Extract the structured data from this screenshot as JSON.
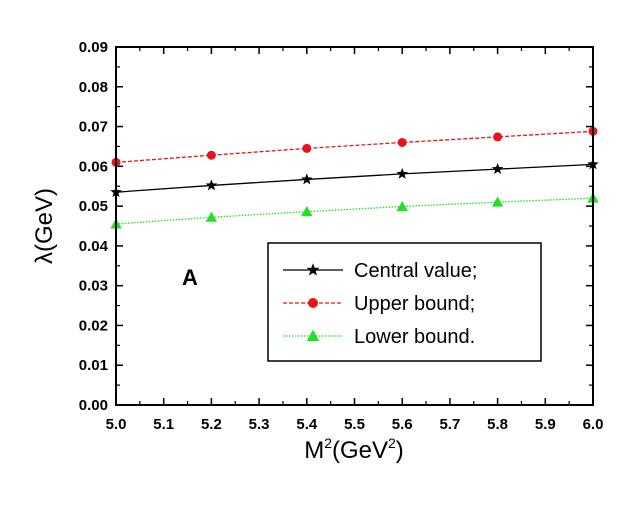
{
  "chart_data": {
    "type": "line",
    "x": [
      5.0,
      5.2,
      5.4,
      5.6,
      5.8,
      6.0
    ],
    "series": [
      {
        "name": "Central value;",
        "values": [
          0.0535,
          0.0552,
          0.0567,
          0.0581,
          0.0593,
          0.0605
        ],
        "color": "#000000",
        "marker": "star",
        "dash": "solid"
      },
      {
        "name": "Upper bound;",
        "values": [
          0.061,
          0.0628,
          0.0645,
          0.066,
          0.0674,
          0.0688
        ],
        "color": "#e8141b",
        "marker": "circle",
        "dash": "dashed"
      },
      {
        "name": "Lower bound.",
        "values": [
          0.0455,
          0.0472,
          0.0486,
          0.0499,
          0.051,
          0.052
        ],
        "color": "#22e022",
        "marker": "triangle",
        "dash": "dotted"
      }
    ],
    "xlim": [
      5.0,
      6.0
    ],
    "ylim": [
      0.0,
      0.09
    ],
    "xticks": [
      "5.0",
      "5.1",
      "5.2",
      "5.3",
      "5.4",
      "5.5",
      "5.6",
      "5.7",
      "5.8",
      "5.9",
      "6.0"
    ],
    "yticks": [
      "0.00",
      "0.01",
      "0.02",
      "0.03",
      "0.04",
      "0.05",
      "0.06",
      "0.07",
      "0.08",
      "0.09"
    ],
    "xlabel": {
      "base": "M",
      "sup1": "2",
      "mid": "(GeV",
      "sup2": "2",
      "end": ")"
    },
    "ylabel": "λ(GeV)",
    "annotation": "A",
    "grid": false,
    "legend_position": "center-right"
  }
}
